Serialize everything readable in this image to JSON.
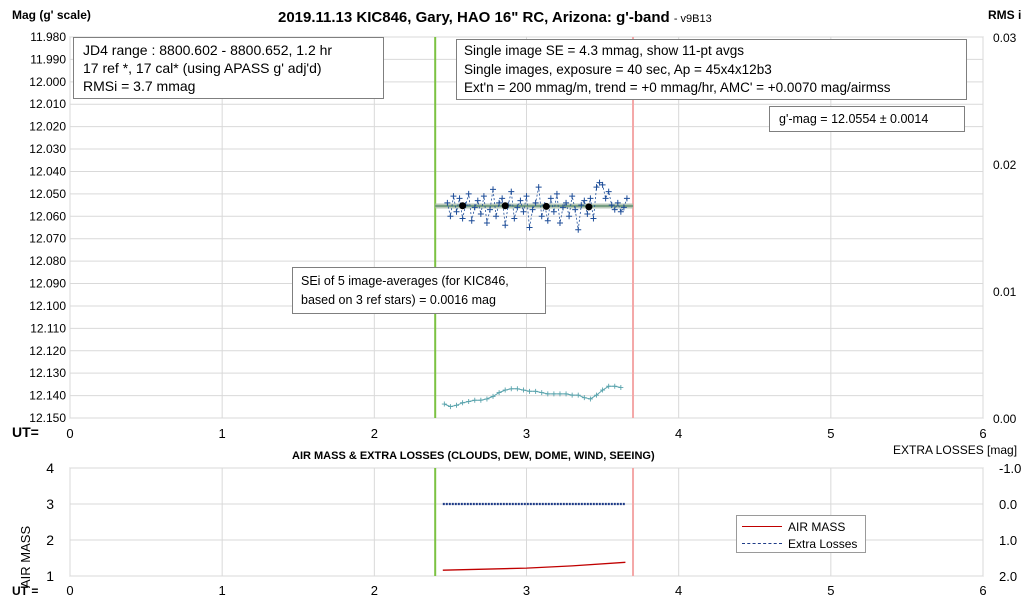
{
  "chart_data": [
    {
      "type": "scatter",
      "title": "2019.11.13 KIC846, Gary, HAO 16\" RC, Arizona: g'-band",
      "version": "- v9B13",
      "ylabel": "Mag (g' scale)",
      "y2label": "RMS i",
      "xlabel": "UT=",
      "xlim": [
        0,
        6
      ],
      "ylim": [
        12.15,
        11.98
      ],
      "y2lim": [
        0,
        0.03
      ],
      "y_reversed": true,
      "xticks": [
        "0",
        "1",
        "2",
        "3",
        "4",
        "5",
        "6"
      ],
      "yticks": [
        "11.980",
        "11.990",
        "12.000",
        "12.010",
        "12.020",
        "12.030",
        "12.040",
        "12.050",
        "12.060",
        "12.070",
        "12.080",
        "12.090",
        "12.100",
        "12.110",
        "12.120",
        "12.130",
        "12.140",
        "12.150"
      ],
      "y2ticks": [
        "0.03",
        "0.02",
        "0.01",
        "0.00"
      ],
      "grid": true,
      "vlines": [
        {
          "x": 2.4,
          "color": "#7cc242"
        },
        {
          "x": 3.7,
          "color": "#f4a8a8"
        }
      ],
      "fit_line": {
        "x": [
          2.4,
          3.7
        ],
        "y": [
          12.0554,
          12.0554
        ],
        "color": "#5f8f6f"
      },
      "averages": {
        "x": [
          2.58,
          2.86,
          3.13,
          3.41
        ],
        "y": [
          12.0553,
          12.0553,
          12.0556,
          12.0558
        ]
      },
      "series": [
        {
          "name": "Mag",
          "color": "#1f4e99",
          "x": [
            2.48,
            2.5,
            2.52,
            2.54,
            2.56,
            2.58,
            2.6,
            2.62,
            2.64,
            2.66,
            2.68,
            2.7,
            2.72,
            2.74,
            2.76,
            2.78,
            2.8,
            2.82,
            2.84,
            2.86,
            2.88,
            2.9,
            2.92,
            2.94,
            2.96,
            2.98,
            3.0,
            3.02,
            3.04,
            3.06,
            3.08,
            3.1,
            3.12,
            3.14,
            3.16,
            3.18,
            3.2,
            3.22,
            3.24,
            3.26,
            3.28,
            3.3,
            3.32,
            3.34,
            3.36,
            3.38,
            3.4,
            3.42,
            3.44,
            3.46,
            3.48,
            3.5,
            3.52,
            3.54,
            3.56,
            3.58,
            3.6,
            3.62,
            3.64,
            3.66
          ],
          "y": [
            12.054,
            12.06,
            12.051,
            12.058,
            12.052,
            12.061,
            12.055,
            12.05,
            12.062,
            12.056,
            12.053,
            12.059,
            12.051,
            12.063,
            12.057,
            12.048,
            12.06,
            12.054,
            12.052,
            12.064,
            12.055,
            12.049,
            12.061,
            12.056,
            12.053,
            12.058,
            12.051,
            12.065,
            12.057,
            12.054,
            12.047,
            12.06,
            12.055,
            12.062,
            12.052,
            12.058,
            12.05,
            12.063,
            12.056,
            12.054,
            12.06,
            12.051,
            12.057,
            12.066,
            12.055,
            12.053,
            12.059,
            12.052,
            12.061,
            12.047,
            12.045,
            12.046,
            12.052,
            12.049,
            12.055,
            12.057,
            12.054,
            12.058,
            12.056,
            12.052
          ]
        },
        {
          "name": "RMS i",
          "color": "#5aa4ad",
          "x": [
            2.46,
            2.5,
            2.54,
            2.58,
            2.62,
            2.66,
            2.7,
            2.74,
            2.78,
            2.82,
            2.86,
            2.9,
            2.94,
            2.98,
            3.02,
            3.06,
            3.1,
            3.14,
            3.18,
            3.22,
            3.26,
            3.3,
            3.34,
            3.38,
            3.42,
            3.46,
            3.5,
            3.54,
            3.58,
            3.62
          ],
          "y": [
            0.0011,
            0.0009,
            0.001,
            0.0012,
            0.0013,
            0.0014,
            0.0014,
            0.0015,
            0.0017,
            0.002,
            0.0022,
            0.0023,
            0.0023,
            0.0022,
            0.0021,
            0.0021,
            0.002,
            0.0019,
            0.0019,
            0.0019,
            0.0019,
            0.0018,
            0.0018,
            0.0016,
            0.0015,
            0.0018,
            0.0022,
            0.0025,
            0.0025,
            0.0024
          ]
        }
      ],
      "annotations": {
        "jd_box": [
          "JD4 range : 8800.602 - 8800.652,  1.2  hr",
          "17 ref *, 17 cal* (using APASS g' adj'd)",
          "RMSi = 3.7 mmag"
        ],
        "se_box": [
          "Single image SE = 4.3 mmag, show  11-pt avgs",
          "Single images, exposure = 40 sec, Ap = 45x4x12b3",
          "Ext'n = 200 mmag/m, trend =  +0 mmag/hr, AMC' = +0.0070 mag/airmss"
        ],
        "gmag_box": "g'-mag = 12.0554 ± 0.0014",
        "sei_box": [
          "SEi of 5 image-averages (for KIC846,",
          "based on 3 ref stars) = 0.0016 mag"
        ]
      }
    },
    {
      "type": "line",
      "title": "AIR MASS & EXTRA LOSSES (CLOUDS, DEW, DOME, WIND, SEEING)",
      "ylabel": "AIR MASS",
      "y2label": "EXTRA LOSSES [mag]",
      "xlabel": "UT =",
      "xlim": [
        0,
        6
      ],
      "ylim": [
        1,
        4
      ],
      "y2lim": [
        2.0,
        -1.0
      ],
      "xticks": [
        "0",
        "1",
        "2",
        "3",
        "4",
        "5",
        "6"
      ],
      "yticks": [
        "1",
        "2",
        "3",
        "4"
      ],
      "y2ticks": [
        "-1.0",
        "0.0",
        "1.0",
        "2.0"
      ],
      "grid": true,
      "legend": "right",
      "vlines": [
        {
          "x": 2.4,
          "color": "#7cc242"
        },
        {
          "x": 3.7,
          "color": "#f4a8a8"
        }
      ],
      "series": [
        {
          "name": "AIR MASS",
          "color": "#c00000",
          "x": [
            2.45,
            3.0,
            3.3,
            3.65
          ],
          "y": [
            1.16,
            1.22,
            1.28,
            1.38
          ]
        },
        {
          "name": "Extra Losses",
          "color": "#1f3c88",
          "x": [
            2.45,
            3.0,
            3.3,
            3.65
          ],
          "y": [
            0.0,
            0.0,
            0.0,
            0.0
          ]
        }
      ]
    }
  ]
}
